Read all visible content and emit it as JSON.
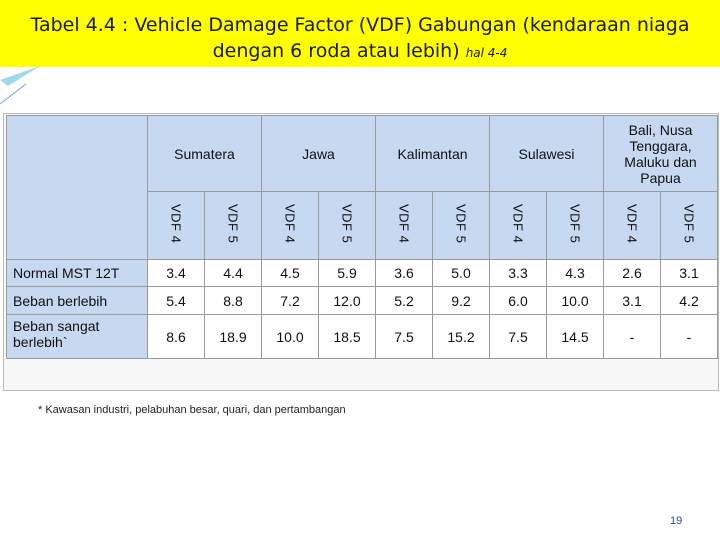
{
  "title": {
    "main": "Tabel 4.4 : Vehicle Damage Factor (VDF) Gabungan (kendaraan niaga dengan 6 roda atau lebih)",
    "ref": "hal 4-4"
  },
  "table": {
    "groups": [
      "Sumatera",
      "Jawa",
      "Kalimantan",
      "Sulawesi",
      "Bali, Nusa Tenggara, Maluku dan Papua"
    ],
    "sub_headers": [
      "VDF 4",
      "VDF 5"
    ],
    "rows": [
      {
        "label": "Normal MST 12T",
        "values": [
          "3.4",
          "4.4",
          "4.5",
          "5.9",
          "3.6",
          "5.0",
          "3.3",
          "4.3",
          "2.6",
          "3.1"
        ]
      },
      {
        "label": "Beban berlebih",
        "values": [
          "5.4",
          "8.8",
          "7.2",
          "12.0",
          "5.2",
          "9.2",
          "6.0",
          "10.0",
          "3.1",
          "4.2"
        ]
      },
      {
        "label": "Beban sangat berlebih`",
        "values": [
          "8.6",
          "18.9",
          "10.0",
          "18.5",
          "7.5",
          "15.2",
          "7.5",
          "14.5",
          "-",
          "-"
        ]
      }
    ]
  },
  "footnote": "* Kawasan industri, pelabuhan besar, quari, dan pertambangan",
  "page_number": "19",
  "colors": {
    "title_bg": "#ffff00",
    "header_bg": "#c6d9f1",
    "page_number": "#1f4e99"
  }
}
